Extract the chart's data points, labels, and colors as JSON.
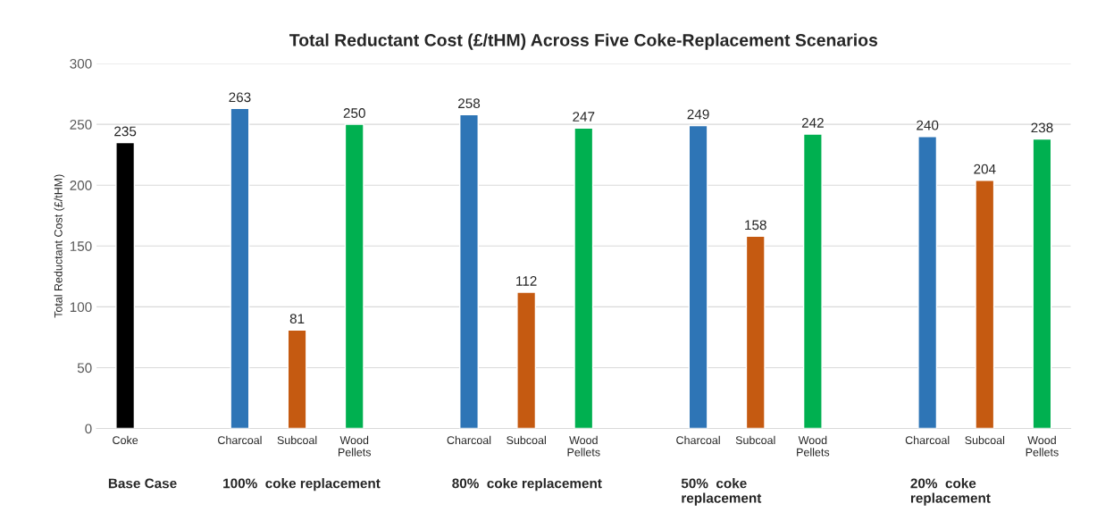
{
  "chart_data": {
    "type": "bar",
    "title": "Total Reductant Cost (£/tHM) Across Five Coke-Replacement Scenarios",
    "ylabel": "Total Reductant Cost (£/tHM)",
    "categories": [
      "Coke",
      null,
      "Charcoal",
      "Subcoal",
      "Wood\nPellets",
      null,
      "Charcoal",
      "Subcoal",
      "Wood\nPellets",
      null,
      "Charcoal",
      "Subcoal",
      "Wood\nPellets",
      null,
      "Charcoal",
      "Subcoal",
      "Wood\nPellets"
    ],
    "values": [
      235,
      null,
      263,
      81,
      250,
      null,
      258,
      112,
      247,
      null,
      249,
      158,
      242,
      null,
      240,
      204,
      238
    ],
    "colors": [
      "#000000",
      null,
      "#2e75b6",
      "#c55a11",
      "#00b050",
      null,
      "#2e75b6",
      "#c55a11",
      "#00b050",
      null,
      "#2e75b6",
      "#c55a11",
      "#00b050",
      null,
      "#2e75b6",
      "#c55a11",
      "#00b050"
    ],
    "ylim": [
      0,
      300
    ],
    "yticks": [
      0,
      50,
      100,
      150,
      200,
      250,
      300
    ],
    "grid": "y",
    "data_labels": true,
    "legend": false,
    "annotations": [
      "Base Case",
      "100%  coke replacement",
      "80%  coke replacement",
      "50%  coke\nreplacement",
      "20%  coke\nreplacement"
    ]
  }
}
